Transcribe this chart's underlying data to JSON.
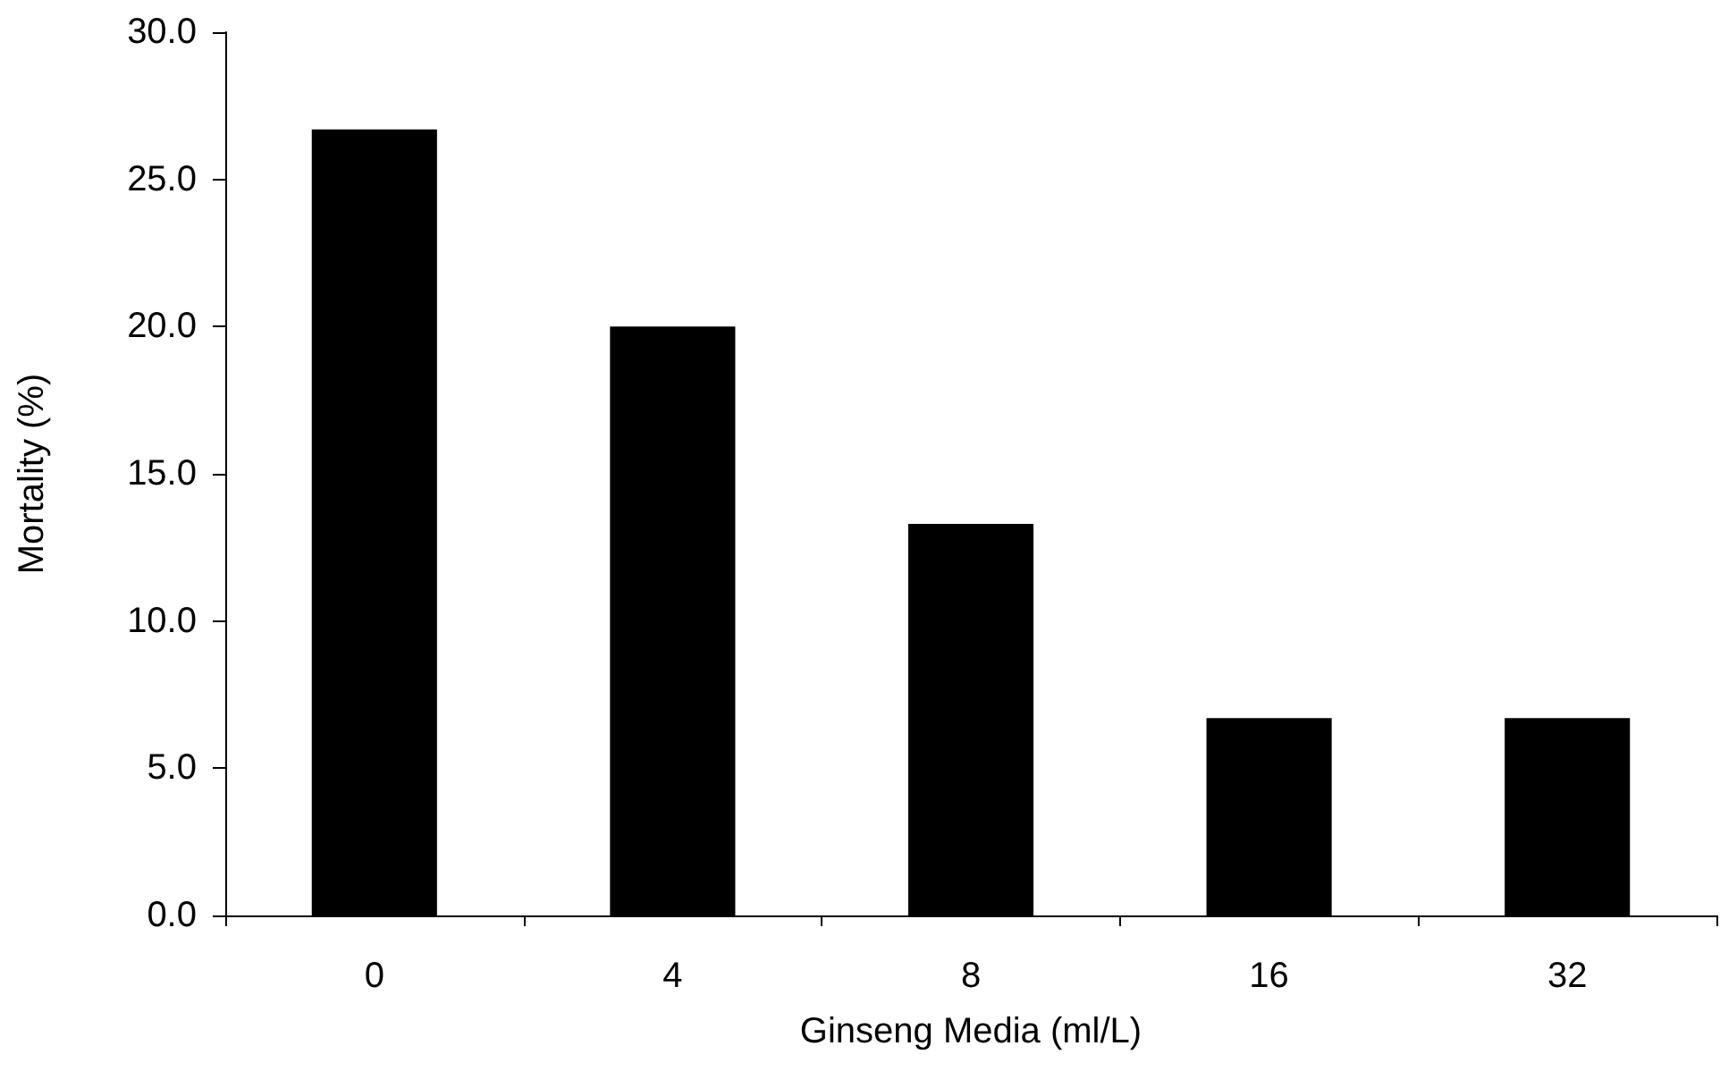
{
  "chart_data": {
    "type": "bar",
    "xlabel": "Ginseng Media (ml/L)",
    "ylabel": "Mortality (%)",
    "categories": [
      "0",
      "4",
      "8",
      "16",
      "32"
    ],
    "values": [
      26.7,
      20.0,
      13.3,
      6.7,
      6.7
    ],
    "color": "#000000",
    "ylim": [
      0,
      30
    ],
    "yticks": [
      {
        "value": 0,
        "label": "0.0"
      },
      {
        "value": 5,
        "label": "5.0"
      },
      {
        "value": 10,
        "label": "10.0"
      },
      {
        "value": 15,
        "label": "15.0"
      },
      {
        "value": 20,
        "label": "20.0"
      },
      {
        "value": 25,
        "label": "25.0"
      },
      {
        "value": 30,
        "label": "30.0"
      }
    ],
    "grid": false
  }
}
